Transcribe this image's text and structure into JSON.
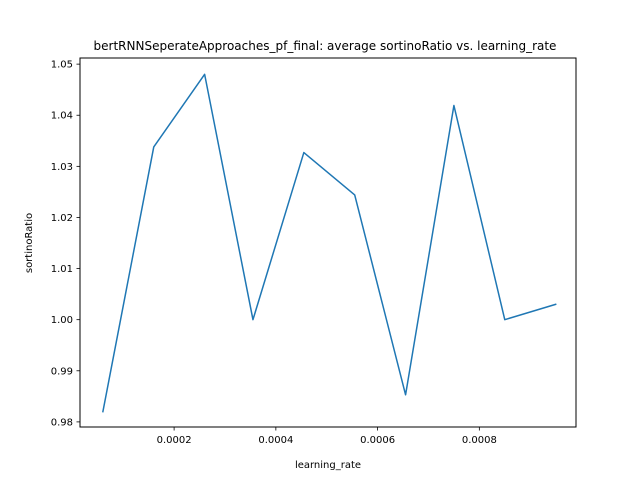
{
  "chart_data": {
    "type": "line",
    "title": "bertRNNSeperateApproaches_pf_final: average sortinoRatio vs. learning_rate",
    "xlabel": "learning_rate",
    "ylabel": "sortinoRatio",
    "xlim": [
      1.5e-05,
      0.00099
    ],
    "ylim": [
      0.979,
      1.0512
    ],
    "xticks": [
      0.0002,
      0.0004,
      0.0006,
      0.0008
    ],
    "xtick_labels": [
      "0.0002",
      "0.0004",
      "0.0006",
      "0.0008"
    ],
    "yticks": [
      0.98,
      0.99,
      1.0,
      1.01,
      1.02,
      1.03,
      1.04,
      1.05
    ],
    "ytick_labels": [
      "0.98",
      "0.99",
      "1.00",
      "1.01",
      "1.02",
      "1.03",
      "1.04",
      "1.05"
    ],
    "grid": false,
    "series": [
      {
        "color": "#1f77b4",
        "x": [
          6e-05,
          0.00016,
          0.00026,
          0.000355,
          0.000455,
          0.000555,
          0.000655,
          0.00075,
          0.00085,
          0.00095
        ],
        "y": [
          0.982,
          1.0338,
          1.048,
          1.0,
          1.0327,
          1.0244,
          0.9853,
          1.0419,
          1.0,
          1.003
        ]
      }
    ]
  }
}
